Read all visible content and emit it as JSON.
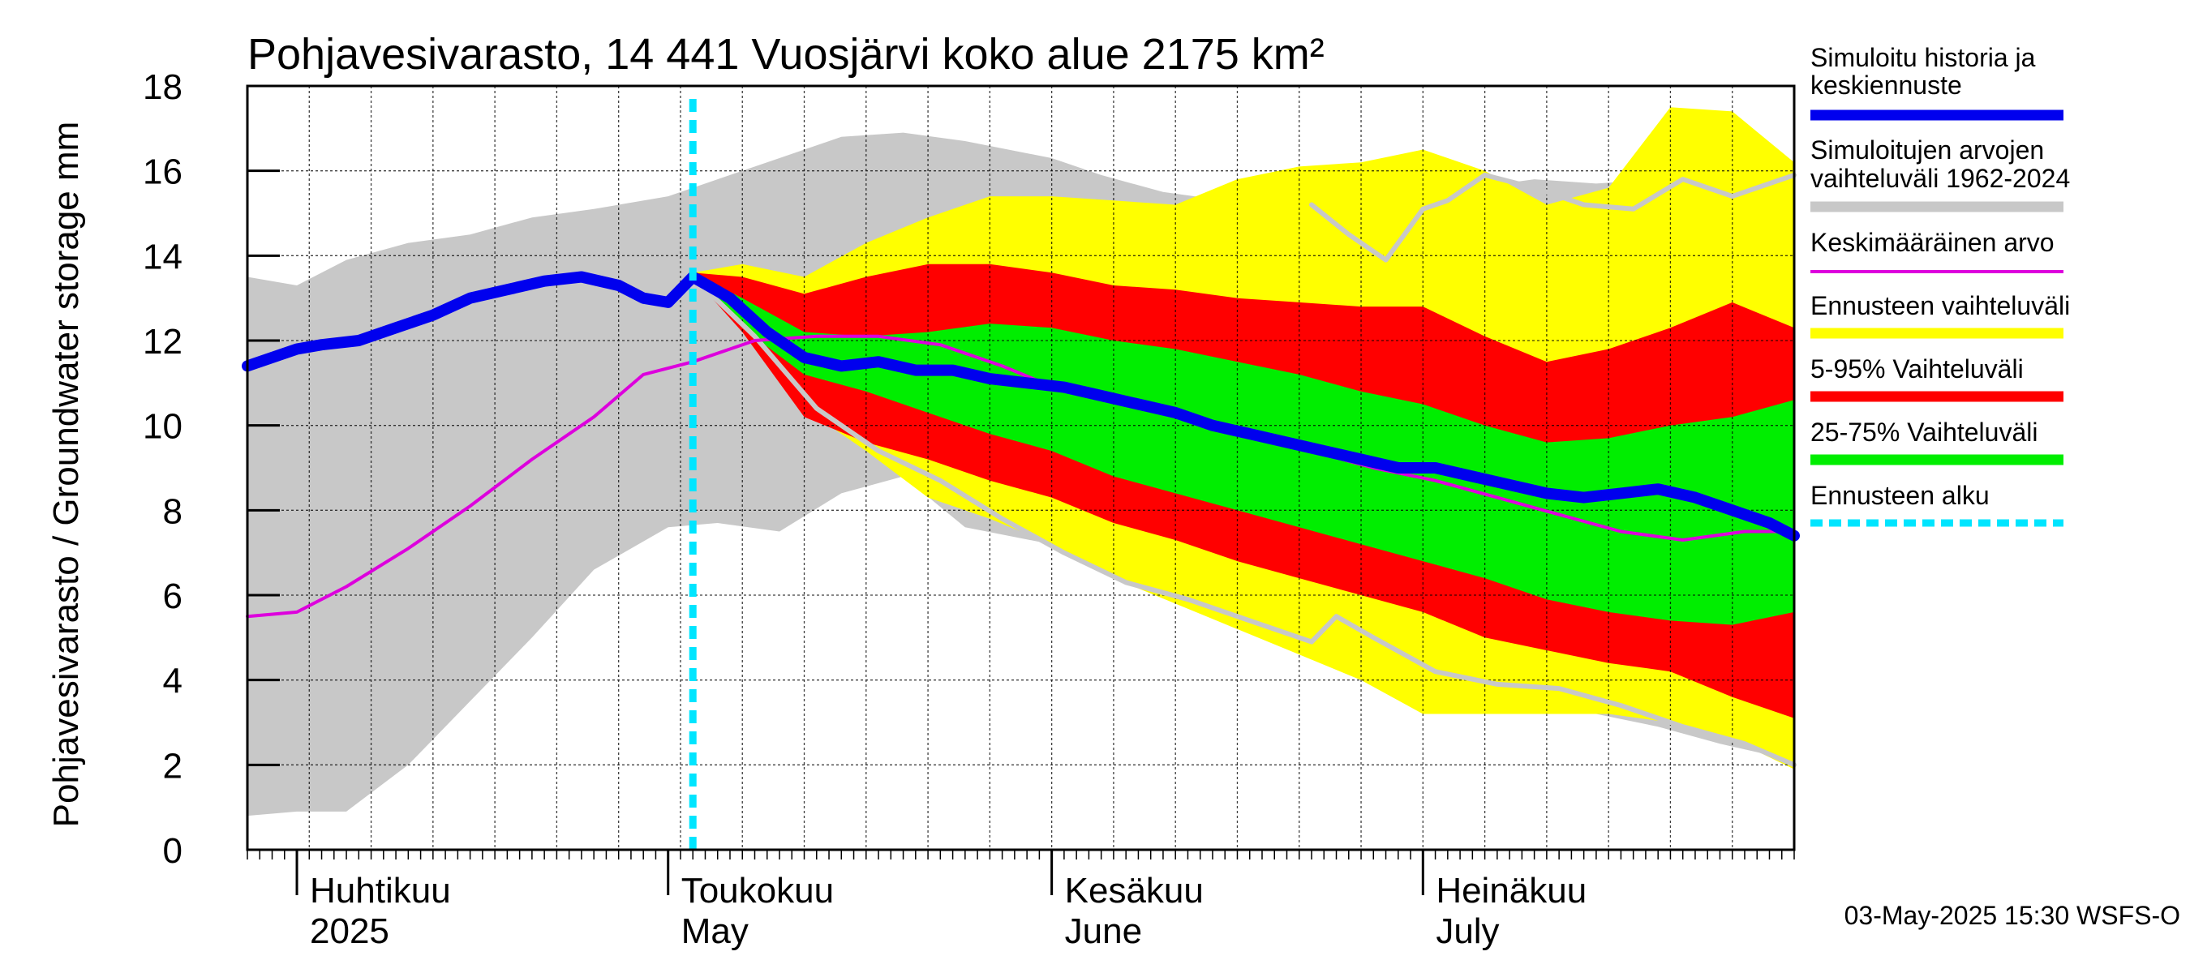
{
  "chart_data": {
    "type": "area",
    "title": "Pohjavesivarasto, 14 441 Vuosjärvi koko alue 2175 km²",
    "ylabel": "Pohjavesivarasto / Groundwater storage   mm",
    "ylim": [
      0,
      18
    ],
    "yticks": [
      "0",
      "2",
      "4",
      "6",
      "8",
      "10",
      "12",
      "14",
      "16",
      "18"
    ],
    "grid": true,
    "legend_position": "right",
    "date_range": [
      "2025-03-28",
      "2025-07-31"
    ],
    "forecast_start": "2025-05-03",
    "months": [
      {
        "date": "2025-04-01",
        "line1": "Huhtikuu",
        "line2": "2025"
      },
      {
        "date": "2025-05-01",
        "line1": "Toukokuu",
        "line2": "May"
      },
      {
        "date": "2025-06-01",
        "line1": "Kesäkuu",
        "line2": "June"
      },
      {
        "date": "2025-07-01",
        "line1": "Heinäkuu",
        "line2": "July"
      }
    ],
    "legend": [
      {
        "key": "sim",
        "label1": "Simuloitu historia ja",
        "label2": "keskiennuste",
        "color": "#0000ee"
      },
      {
        "key": "hist",
        "label1": "Simuloitujen arvojen",
        "label2": "vaihteluväli 1962-2024",
        "color": "#c8c8c8"
      },
      {
        "key": "mean",
        "label1": "Keskimääräinen arvo",
        "label2": "",
        "color": "#dd00dd"
      },
      {
        "key": "fc",
        "label1": "Ennusteen vaihteluväli",
        "label2": "",
        "color": "#ffff00"
      },
      {
        "key": "p595",
        "label1": "5-95% Vaihteluväli",
        "label2": "",
        "color": "#ff0000"
      },
      {
        "key": "p2575",
        "label1": "25-75% Vaihteluväli",
        "label2": "",
        "color": "#00ee00"
      },
      {
        "key": "start",
        "label1": "Ennusteen alku",
        "label2": "",
        "color": "#00e5ff"
      }
    ],
    "series": {
      "hist_band": {
        "x": [
          "2025-03-28",
          "2025-04-01",
          "2025-04-05",
          "2025-04-10",
          "2025-04-15",
          "2025-04-20",
          "2025-04-25",
          "2025-05-01",
          "2025-05-05",
          "2025-05-10",
          "2025-05-15",
          "2025-05-20",
          "2025-05-25",
          "2025-06-01",
          "2025-06-05",
          "2025-06-10",
          "2025-06-15",
          "2025-06-20",
          "2025-06-25",
          "2025-07-01",
          "2025-07-05",
          "2025-07-10",
          "2025-07-15",
          "2025-07-20",
          "2025-07-25",
          "2025-07-31"
        ],
        "upper": [
          13.5,
          13.3,
          13.9,
          14.3,
          14.5,
          14.9,
          15.1,
          15.4,
          15.8,
          16.3,
          16.8,
          16.9,
          16.7,
          16.3,
          15.9,
          15.5,
          15.3,
          15.2,
          15.1,
          15.2,
          15.6,
          15.8,
          15.7,
          15.8,
          15.7,
          15.9
        ],
        "lower": [
          0.8,
          0.9,
          0.9,
          2.0,
          3.5,
          5.0,
          6.6,
          7.6,
          7.7,
          7.5,
          8.4,
          8.8,
          7.6,
          7.2,
          6.6,
          6.2,
          5.7,
          5.2,
          4.7,
          4.3,
          3.9,
          3.6,
          3.2,
          2.9,
          2.5,
          2.1
        ]
      },
      "forecast_band": {
        "x": [
          "2025-05-03",
          "2025-05-07",
          "2025-05-12",
          "2025-05-17",
          "2025-05-22",
          "2025-05-27",
          "2025-06-01",
          "2025-06-06",
          "2025-06-11",
          "2025-06-16",
          "2025-06-21",
          "2025-06-26",
          "2025-07-01",
          "2025-07-06",
          "2025-07-11",
          "2025-07-16",
          "2025-07-21",
          "2025-07-26",
          "2025-07-31"
        ],
        "upper": [
          13.6,
          13.8,
          13.5,
          14.3,
          14.9,
          15.4,
          15.4,
          15.3,
          15.2,
          15.8,
          16.1,
          16.2,
          16.5,
          16.0,
          15.2,
          15.6,
          17.5,
          17.4,
          16.2
        ],
        "lower": [
          13.5,
          12.4,
          10.4,
          9.4,
          8.3,
          7.8,
          7.2,
          6.4,
          5.8,
          5.2,
          4.6,
          4.0,
          3.2,
          3.2,
          3.2,
          3.2,
          3.0,
          2.6,
          1.9
        ]
      },
      "p5_95_band": {
        "x": [
          "2025-05-03",
          "2025-05-07",
          "2025-05-12",
          "2025-05-17",
          "2025-05-22",
          "2025-05-27",
          "2025-06-01",
          "2025-06-06",
          "2025-06-11",
          "2025-06-16",
          "2025-06-21",
          "2025-06-26",
          "2025-07-01",
          "2025-07-06",
          "2025-07-11",
          "2025-07-16",
          "2025-07-21",
          "2025-07-26",
          "2025-07-31"
        ],
        "upper": [
          13.6,
          13.5,
          13.1,
          13.5,
          13.8,
          13.8,
          13.6,
          13.3,
          13.2,
          13.0,
          12.9,
          12.8,
          12.8,
          12.1,
          11.5,
          11.8,
          12.3,
          12.9,
          12.3
        ],
        "lower": [
          13.5,
          12.2,
          10.2,
          9.6,
          9.2,
          8.7,
          8.3,
          7.7,
          7.3,
          6.8,
          6.4,
          6.0,
          5.6,
          5.0,
          4.7,
          4.4,
          4.2,
          3.6,
          3.1
        ]
      },
      "p25_75_band": {
        "x": [
          "2025-05-03",
          "2025-05-07",
          "2025-05-12",
          "2025-05-17",
          "2025-05-22",
          "2025-05-27",
          "2025-06-01",
          "2025-06-06",
          "2025-06-11",
          "2025-06-16",
          "2025-06-21",
          "2025-06-26",
          "2025-07-01",
          "2025-07-06",
          "2025-07-11",
          "2025-07-16",
          "2025-07-21",
          "2025-07-26",
          "2025-07-31"
        ],
        "upper": [
          13.6,
          13.0,
          12.2,
          12.1,
          12.2,
          12.4,
          12.3,
          12.0,
          11.8,
          11.5,
          11.2,
          10.8,
          10.5,
          10.0,
          9.6,
          9.7,
          10.0,
          10.2,
          10.6
        ],
        "lower": [
          13.5,
          12.3,
          11.2,
          10.8,
          10.3,
          9.8,
          9.4,
          8.8,
          8.4,
          8.0,
          7.6,
          7.2,
          6.8,
          6.4,
          5.9,
          5.6,
          5.4,
          5.3,
          5.6
        ]
      },
      "simulated": {
        "x": [
          "2025-03-28",
          "2025-04-01",
          "2025-04-03",
          "2025-04-06",
          "2025-04-09",
          "2025-04-12",
          "2025-04-15",
          "2025-04-18",
          "2025-04-21",
          "2025-04-24",
          "2025-04-27",
          "2025-04-29",
          "2025-05-01",
          "2025-05-03",
          "2025-05-06",
          "2025-05-09",
          "2025-05-12",
          "2025-05-15",
          "2025-05-18",
          "2025-05-21",
          "2025-05-24",
          "2025-05-27",
          "2025-05-30",
          "2025-06-02",
          "2025-06-05",
          "2025-06-08",
          "2025-06-11",
          "2025-06-14",
          "2025-06-17",
          "2025-06-20",
          "2025-06-23",
          "2025-06-26",
          "2025-06-29",
          "2025-07-02",
          "2025-07-05",
          "2025-07-08",
          "2025-07-11",
          "2025-07-14",
          "2025-07-17",
          "2025-07-20",
          "2025-07-23",
          "2025-07-26",
          "2025-07-29",
          "2025-07-31"
        ],
        "y": [
          11.4,
          11.8,
          11.9,
          12.0,
          12.3,
          12.6,
          13.0,
          13.2,
          13.4,
          13.5,
          13.3,
          13.0,
          12.9,
          13.5,
          13.0,
          12.2,
          11.6,
          11.4,
          11.5,
          11.3,
          11.3,
          11.1,
          11.0,
          10.9,
          10.7,
          10.5,
          10.3,
          10.0,
          9.8,
          9.6,
          9.4,
          9.2,
          9.0,
          9.0,
          8.8,
          8.6,
          8.4,
          8.3,
          8.4,
          8.5,
          8.3,
          8.0,
          7.7,
          7.4
        ]
      },
      "mean": {
        "x": [
          "2025-03-28",
          "2025-04-01",
          "2025-04-05",
          "2025-04-10",
          "2025-04-15",
          "2025-04-20",
          "2025-04-25",
          "2025-04-29",
          "2025-05-03",
          "2025-05-08",
          "2025-05-13",
          "2025-05-18",
          "2025-05-23",
          "2025-05-28",
          "2025-06-02",
          "2025-06-07",
          "2025-06-12",
          "2025-06-17",
          "2025-06-22",
          "2025-06-27",
          "2025-07-02",
          "2025-07-07",
          "2025-07-12",
          "2025-07-17",
          "2025-07-22",
          "2025-07-27",
          "2025-07-31"
        ],
        "y": [
          5.5,
          5.6,
          6.2,
          7.1,
          8.1,
          9.2,
          10.2,
          11.2,
          11.5,
          12.0,
          12.1,
          12.1,
          11.9,
          11.4,
          10.8,
          10.6,
          10.2,
          9.9,
          9.4,
          9.0,
          8.7,
          8.3,
          7.9,
          7.5,
          7.3,
          7.5,
          7.5
        ]
      },
      "historical_median_forecast": {
        "x": [
          "2025-05-03",
          "2025-05-08",
          "2025-05-13",
          "2025-05-18",
          "2025-05-23",
          "2025-05-28",
          "2025-06-02",
          "2025-06-07",
          "2025-06-12",
          "2025-06-17",
          "2025-06-22",
          "2025-06-24",
          "2025-06-27",
          "2025-07-02",
          "2025-07-07",
          "2025-07-12",
          "2025-07-17",
          "2025-07-22",
          "2025-07-27",
          "2025-07-31"
        ],
        "y": [
          13.5,
          12.1,
          10.4,
          9.4,
          8.7,
          7.8,
          7.0,
          6.3,
          5.9,
          5.4,
          4.9,
          5.5,
          5.0,
          4.2,
          3.9,
          3.8,
          3.4,
          2.9,
          2.5,
          2.0
        ]
      },
      "historical_upper_line": {
        "x": [
          "2025-06-22",
          "2025-06-25",
          "2025-06-28",
          "2025-07-01",
          "2025-07-03",
          "2025-07-06",
          "2025-07-10",
          "2025-07-14",
          "2025-07-18",
          "2025-07-22",
          "2025-07-26",
          "2025-07-31"
        ],
        "y": [
          15.2,
          14.5,
          13.9,
          15.1,
          15.3,
          15.9,
          15.6,
          15.2,
          15.1,
          15.8,
          15.4,
          15.9
        ]
      }
    }
  },
  "footer": {
    "timestamp": "03-May-2025 15:30 WSFS-O"
  }
}
